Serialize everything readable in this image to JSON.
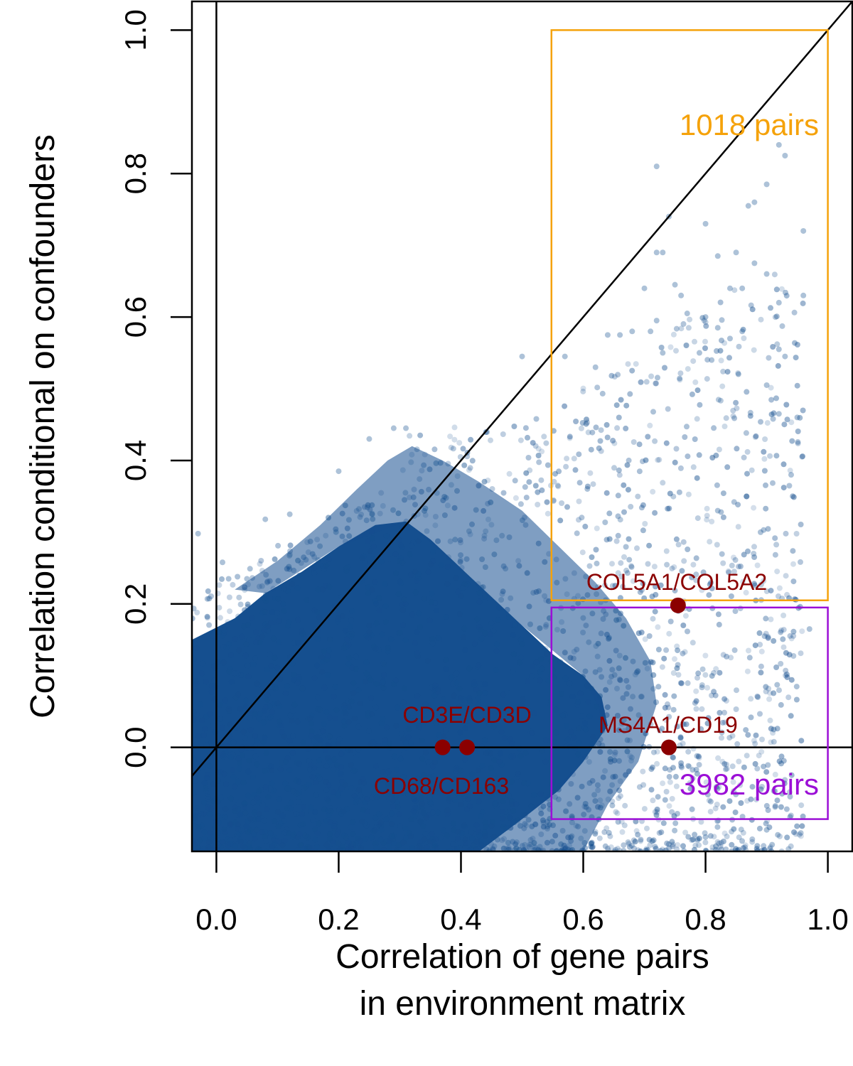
{
  "chart_data": {
    "type": "scatter",
    "title": "",
    "xlabel": [
      "Correlation of gene pairs",
      "in environment matrix"
    ],
    "ylabel": "Correlation conditional on confounders",
    "xlim": [
      -0.04,
      1.04
    ],
    "ylim": [
      -0.145,
      1.04
    ],
    "xticks": [
      0.0,
      0.2,
      0.4,
      0.6,
      0.8,
      1.0
    ],
    "xtick_labels": [
      "0.0",
      "0.2",
      "0.4",
      "0.6",
      "0.8",
      "1.0"
    ],
    "yticks": [
      0.0,
      0.2,
      0.4,
      0.6,
      0.8,
      1.0
    ],
    "ytick_labels": [
      "0.0",
      "0.2",
      "0.4",
      "0.6",
      "0.8",
      "1.0"
    ],
    "grid": false,
    "reference_lines": [
      {
        "kind": "vertical",
        "x": 0
      },
      {
        "kind": "horizontal",
        "y": 0
      },
      {
        "kind": "identity",
        "slope": 1,
        "intercept": 0
      }
    ],
    "point_color": "#154f8f",
    "highlight_color": "#8b0000",
    "regions": [
      {
        "label": "1018 pairs",
        "color": "#f5a20a",
        "x": [
          0.548,
          1.0
        ],
        "y": [
          0.205,
          1.0
        ]
      },
      {
        "label": "3982 pairs",
        "color": "#9b0fd6",
        "x": [
          0.548,
          1.0
        ],
        "y": [
          -0.1,
          0.195
        ]
      }
    ],
    "highlighted_pairs": [
      {
        "label": "COL5A1/COL5A2",
        "x": 0.755,
        "y": 0.198
      },
      {
        "label": "CD3E/CD3D",
        "x": 0.41,
        "y": 0.0
      },
      {
        "label": "CD68/CD163",
        "x": 0.37,
        "y": 0.0
      },
      {
        "label": "MS4A1/CD19",
        "x": 0.74,
        "y": 0.0
      }
    ],
    "sparse_points": [
      [
        0.72,
        0.81
      ],
      [
        0.92,
        0.84
      ],
      [
        0.93,
        0.825
      ],
      [
        0.9,
        0.785
      ],
      [
        0.88,
        0.76
      ],
      [
        0.87,
        0.755
      ],
      [
        0.74,
        0.74
      ],
      [
        0.8,
        0.73
      ],
      [
        0.96,
        0.72
      ],
      [
        0.73,
        0.69
      ],
      [
        0.72,
        0.69
      ],
      [
        0.85,
        0.69
      ],
      [
        0.82,
        0.685
      ],
      [
        0.88,
        0.675
      ],
      [
        0.9,
        0.66
      ],
      [
        0.86,
        0.64
      ],
      [
        0.75,
        0.645
      ],
      [
        0.84,
        0.64
      ],
      [
        0.7,
        0.64
      ],
      [
        0.96,
        0.63
      ],
      [
        0.76,
        0.63
      ],
      [
        0.92,
        0.62
      ],
      [
        0.77,
        0.605
      ],
      [
        0.8,
        0.6
      ],
      [
        0.72,
        0.595
      ],
      [
        0.68,
        0.58
      ],
      [
        0.64,
        0.575
      ],
      [
        0.92,
        0.555
      ],
      [
        0.93,
        0.545
      ],
      [
        0.73,
        0.55
      ],
      [
        0.79,
        0.55
      ],
      [
        0.81,
        0.54
      ],
      [
        0.86,
        0.58
      ],
      [
        0.82,
        0.585
      ],
      [
        0.84,
        0.57
      ],
      [
        0.71,
        0.58
      ],
      [
        0.66,
        0.575
      ],
      [
        0.62,
        0.53
      ],
      [
        0.57,
        0.545
      ],
      [
        0.5,
        0.545
      ],
      [
        0.9,
        0.505
      ],
      [
        0.92,
        0.465
      ],
      [
        0.95,
        0.46
      ],
      [
        0.94,
        0.38
      ],
      [
        0.82,
        0.33
      ],
      [
        0.89,
        0.3
      ],
      [
        0.97,
        0.165
      ],
      [
        0.9,
        -0.115
      ],
      [
        0.74,
        -0.135
      ],
      [
        0.8,
        -0.125
      ],
      [
        0.02,
        0.235
      ],
      [
        0.01,
        0.258
      ],
      [
        -0.03,
        0.298
      ],
      [
        0.05,
        0.235
      ],
      [
        0.08,
        0.318
      ],
      [
        0.12,
        0.325
      ],
      [
        0.2,
        0.385
      ],
      [
        0.25,
        0.43
      ],
      [
        0.29,
        0.445
      ],
      [
        0.31,
        0.445
      ]
    ]
  }
}
